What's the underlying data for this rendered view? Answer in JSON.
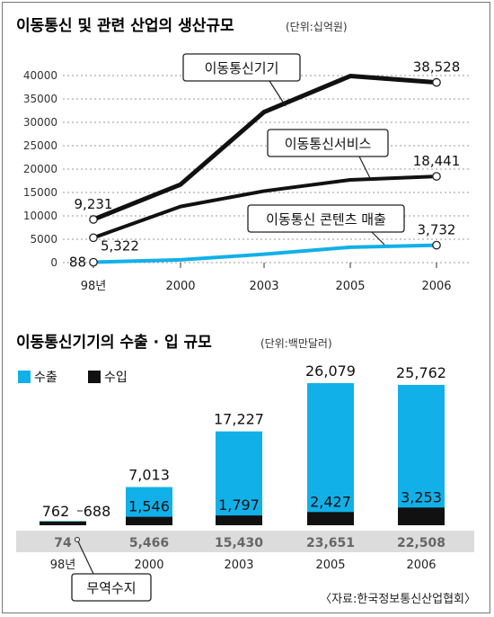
{
  "line_chart": {
    "title": "이동통신 및 관련 산업의 생산규모",
    "unit": "(단위:십억원)"
  },
  "bar_chart": {
    "title": "이동통신기기의 수출 · 입 규모",
    "unit": "(단위:백만달러)",
    "legend_export": "수출",
    "legend_import": "수입",
    "balance_callout": "무역수지"
  },
  "source": "〈자료:한국정보통신산업협회〉",
  "colors": {
    "export": "#12b0e8",
    "import": "#111111",
    "line_dark": "#111111",
    "line_light": "#12b0e8",
    "band": "#dcdcdc"
  },
  "chart_data": [
    {
      "type": "line",
      "title": "이동통신 및 관련 산업의 생산규모",
      "unit": "(단위:십억원)",
      "categories": [
        "98년",
        "2000",
        "2003",
        "2005",
        "2006"
      ],
      "ylim": [
        0,
        40000
      ],
      "yticks": [
        0,
        5000,
        10000,
        15000,
        20000,
        25000,
        30000,
        35000,
        40000
      ],
      "grid": true,
      "series": [
        {
          "name": "이동통신기기",
          "values": [
            9231,
            16700,
            32200,
            39900,
            38528
          ],
          "labels": [
            "9,231",
            null,
            null,
            null,
            "38,528"
          ]
        },
        {
          "name": "이동통신서비스",
          "values": [
            5322,
            12000,
            15300,
            17700,
            18441
          ],
          "labels": [
            "5,322",
            null,
            null,
            null,
            "18,441"
          ]
        },
        {
          "name": "이동통신 콘텐츠 매출",
          "values": [
            88,
            600,
            1800,
            3300,
            3732
          ],
          "labels": [
            "88",
            null,
            null,
            null,
            "3,732"
          ]
        }
      ]
    },
    {
      "type": "bar",
      "title": "이동통신기기의 수출 · 입 규모",
      "unit": "(단위:백만달러)",
      "categories": [
        "98년",
        "2000",
        "2003",
        "2005",
        "2006"
      ],
      "series": [
        {
          "name": "수출",
          "values": [
            762,
            7013,
            17227,
            26079,
            25762
          ],
          "labels": [
            "762",
            "7,013",
            "17,227",
            "26,079",
            "25,762"
          ]
        },
        {
          "name": "수입",
          "values": [
            688,
            1546,
            1797,
            2427,
            3253
          ],
          "labels": [
            "688",
            "1,546",
            "1,797",
            "2,427",
            "3,253"
          ]
        }
      ],
      "trade_balance": {
        "name": "무역수지",
        "values": [
          74,
          5466,
          15430,
          23651,
          22508
        ],
        "labels": [
          "74",
          "5,466",
          "15,430",
          "23,651",
          "22,508"
        ]
      }
    }
  ]
}
